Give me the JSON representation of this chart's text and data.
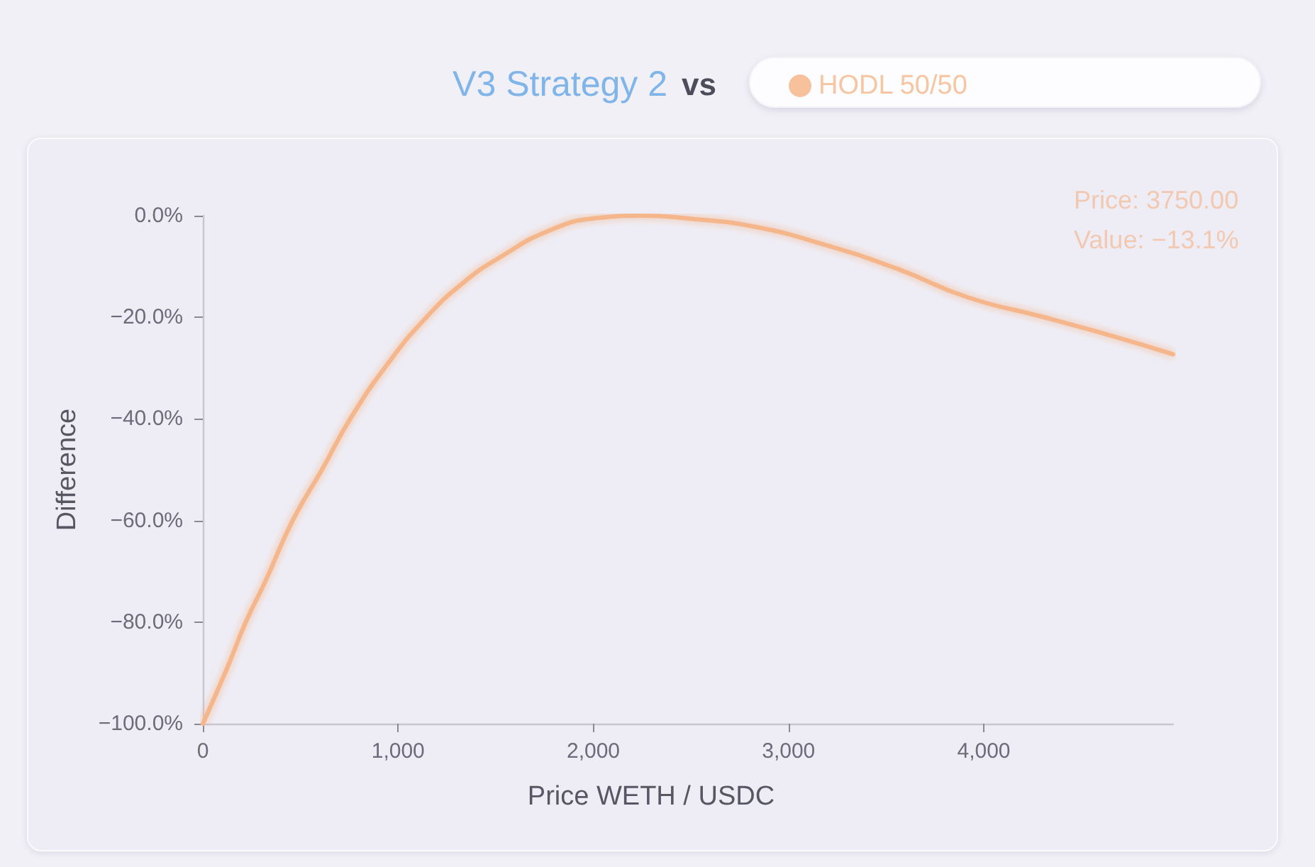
{
  "chart_data": {
    "type": "line",
    "title": "V3 Strategy 2",
    "subtitle": "vs",
    "xlabel": "Price WETH / USDC",
    "ylabel": "Difference",
    "annotations": [
      "Price: 3750.00",
      "Value: −13.1%"
    ],
    "series": [
      {
        "name": "HODL 50/50",
        "color": "#f4b68a",
        "x": [
          0,
          125,
          220,
          320,
          460,
          610,
          755,
          950,
          1145,
          1340,
          1530,
          1770,
          2010,
          2250,
          2470,
          2830,
          3200,
          3560,
          3920,
          4290,
          4650,
          4970
        ],
        "values": [
          -100,
          -89,
          -80,
          -72,
          -60,
          -50,
          -40,
          -29,
          -20,
          -13,
          -8,
          -3,
          -0.5,
          0,
          -0.5,
          -2.2,
          -5.9,
          -10.5,
          -16.1,
          -19.8,
          -23.6,
          -27.3
        ]
      }
    ],
    "xlim": [
      0,
      4970
    ],
    "ylim": [
      -100,
      0
    ],
    "xticks": [
      0,
      {
        "value": 1000,
        "label": "1,000"
      },
      {
        "value": 2000,
        "label": "2,000"
      },
      {
        "value": 3000,
        "label": "3,000"
      },
      {
        "value": 4000,
        "label": "4,000"
      }
    ],
    "yticks": [
      {
        "value": -100,
        "label": "−100.0%"
      },
      {
        "value": -80,
        "label": "−80.0%"
      },
      {
        "value": -60,
        "label": "−60.0%"
      },
      {
        "value": -40,
        "label": "−40.0%"
      },
      {
        "value": -20,
        "label": "−20.0%"
      },
      {
        "value": 0,
        "label": "0.0%"
      }
    ],
    "grid": false,
    "legend": "top right",
    "marker": "none",
    "line_style": "solid"
  }
}
